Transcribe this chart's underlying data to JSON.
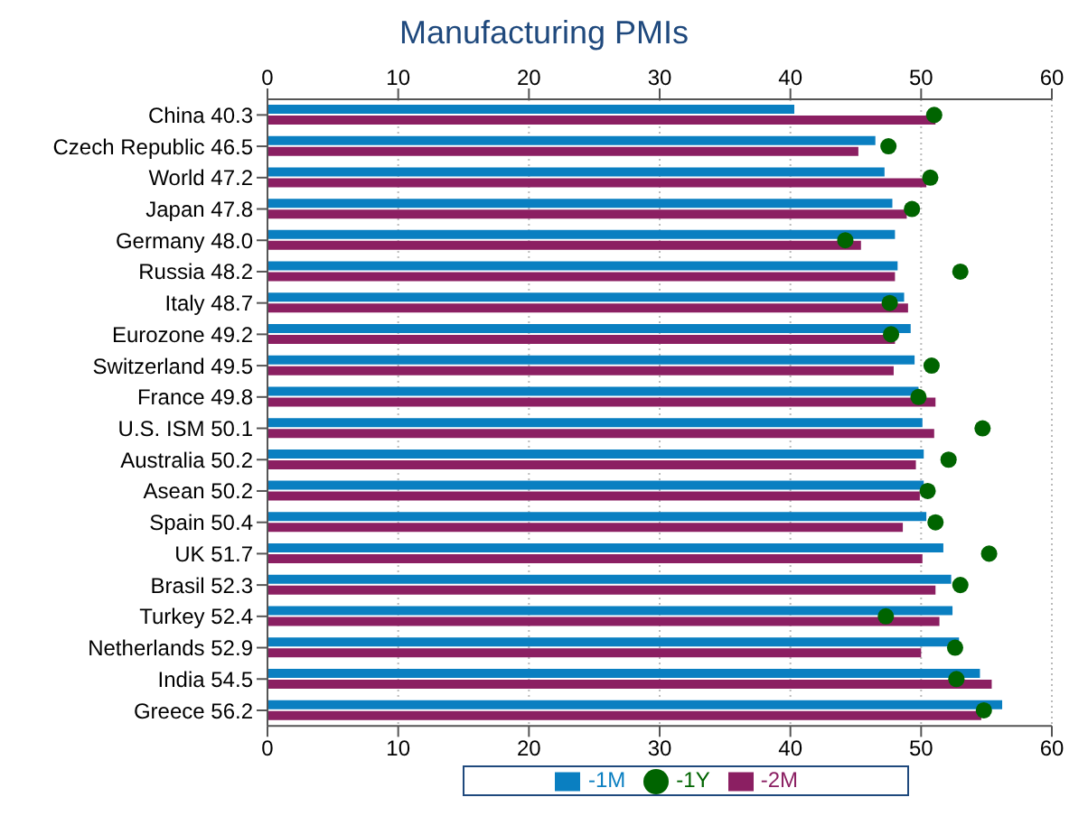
{
  "chart_data": {
    "type": "bar",
    "orientation": "horizontal",
    "title": "Manufacturing PMIs",
    "categories": [
      "China 40.3",
      "Czech Republic 46.5",
      "World 47.2",
      "Japan 47.8",
      "Germany 48.0",
      "Russia 48.2",
      "Italy 48.7",
      "Eurozone 49.2",
      "Switzerland 49.5",
      "France 49.8",
      "U.S. ISM 50.1",
      "Australia 50.2",
      "Asean 50.2",
      "Spain 50.4",
      "UK 51.7",
      "Brasil 52.3",
      "Turkey 52.4",
      "Netherlands 52.9",
      "India 54.5",
      "Greece 56.2"
    ],
    "series": [
      {
        "name": "-1M",
        "color": "#0a7fc1",
        "values": [
          40.3,
          46.5,
          47.2,
          47.8,
          48.0,
          48.2,
          48.7,
          49.2,
          49.5,
          49.8,
          50.1,
          50.2,
          50.2,
          50.4,
          51.7,
          52.3,
          52.4,
          52.9,
          54.5,
          56.2
        ]
      },
      {
        "name": "-2M",
        "color": "#8b1f62",
        "values": [
          51.1,
          45.2,
          50.4,
          48.9,
          45.4,
          48.0,
          49.0,
          48.0,
          47.9,
          51.1,
          51.0,
          49.6,
          49.9,
          48.6,
          50.1,
          51.1,
          51.4,
          50.0,
          55.4,
          54.6
        ]
      },
      {
        "name": "-1Y",
        "type": "scatter",
        "color": "#006400",
        "values": [
          51.0,
          47.5,
          50.7,
          49.3,
          44.2,
          53.0,
          47.6,
          47.7,
          50.8,
          49.8,
          54.7,
          52.1,
          50.5,
          51.1,
          55.2,
          53.0,
          47.3,
          52.6,
          52.7,
          54.8
        ]
      }
    ],
    "xlim": [
      0,
      60
    ],
    "xticks": [
      0,
      10,
      20,
      30,
      40,
      50,
      60
    ],
    "x2lim": [
      0,
      60
    ],
    "x2ticks": [
      0,
      10,
      20,
      30,
      40,
      50,
      60
    ],
    "grid": "x",
    "legend": "bottom",
    "marker": "circle"
  }
}
